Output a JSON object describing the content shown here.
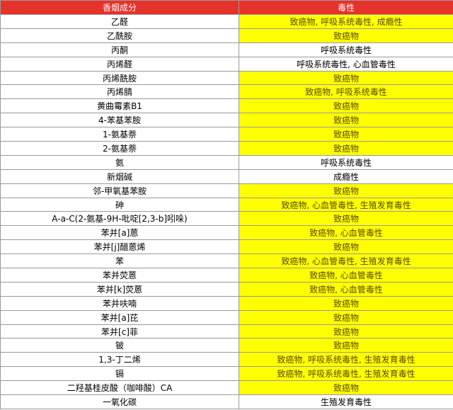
{
  "table": {
    "header_color": "#e5322b",
    "highlight_color": "#ffff00",
    "highlight_text_color": "#5a4a00",
    "header": [
      "香烟成分",
      "毒性"
    ],
    "rows": [
      [
        "乙醛",
        "致癌物, 呼吸系统毒性, 成瘾性"
      ],
      [
        "乙酰胺",
        "致癌物"
      ],
      [
        "丙酮",
        "呼吸系统毒性"
      ],
      [
        "丙烯醛",
        "呼吸系统毒性, 心血管毒性"
      ],
      [
        "丙烯酰胺",
        "致癌物"
      ],
      [
        "丙烯腈",
        "致癌物, 呼吸系统毒性"
      ],
      [
        "黄曲霉素B1",
        "致癌物"
      ],
      [
        "4-苯基苯胺",
        "致癌物"
      ],
      [
        "1-氨基萘",
        "致癌物"
      ],
      [
        "2-氨基萘",
        "致癌物"
      ],
      [
        "氨",
        "呼吸系统毒性"
      ],
      [
        "新烟碱",
        "成瘾性"
      ],
      [
        "邻-甲氧基苯胺",
        "致癌物"
      ],
      [
        "砷",
        "致癌物, 心血管毒性, 生殖发育毒性"
      ],
      [
        "A-a-C(2-氨基-9H-吡啶[2,3-b]吲哚)",
        "致癌物"
      ],
      [
        "苯并[a]蒽",
        "致癌物, 心血管毒性"
      ],
      [
        "苯并[j]醋蒽烯",
        "致癌物"
      ],
      [
        "苯",
        "致癌物, 心血管毒性, 生殖发育毒性"
      ],
      [
        "苯并荧蒽",
        "致癌物, 心血管毒性"
      ],
      [
        "苯并[k]荧蒽",
        "致癌物, 心血管毒性"
      ],
      [
        "苯并呋喃",
        "致癌物"
      ],
      [
        "苯并[a]芘",
        "致癌物"
      ],
      [
        "苯并[c]菲",
        "致癌物"
      ],
      [
        "铍",
        "致癌物"
      ],
      [
        "1,3-丁二烯",
        "致癌物, 呼吸系统毒性, 生殖发育毒性"
      ],
      [
        "镉",
        "致癌物, 呼吸系统毒性, 生殖发育毒性"
      ],
      [
        "二羟基桂皮酸（咖啡酸）CA",
        "致癌物"
      ],
      [
        "一氧化碳",
        "生殖发育毒性"
      ]
    ],
    "highlighted": [
      true,
      true,
      false,
      false,
      true,
      true,
      true,
      true,
      true,
      true,
      false,
      false,
      true,
      true,
      true,
      true,
      true,
      true,
      true,
      true,
      true,
      true,
      true,
      true,
      true,
      true,
      true,
      false
    ]
  }
}
